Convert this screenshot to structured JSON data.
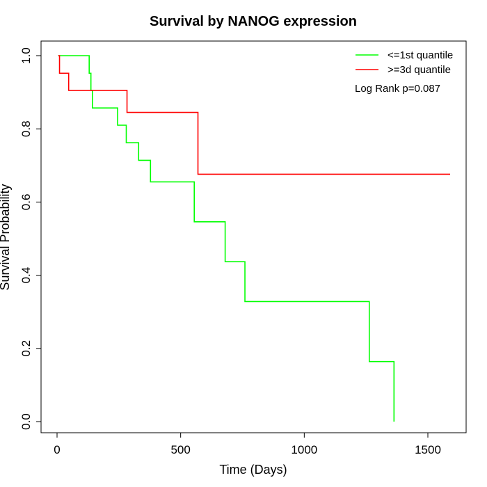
{
  "chart_data": {
    "type": "line",
    "title": "Survival by NANOG expression",
    "xlabel": "Time (Days)",
    "ylabel": "Survival Probability",
    "xlim": [
      0,
      1600
    ],
    "ylim": [
      0,
      1.0
    ],
    "xticks": [
      0,
      500,
      1000,
      1500
    ],
    "yticks": [
      0.0,
      0.2,
      0.4,
      0.6,
      0.8,
      1.0
    ],
    "xtick_labels": [
      "0",
      "500",
      "1000",
      "1500"
    ],
    "ytick_labels": [
      "0.0",
      "0.2",
      "0.4",
      "0.6",
      "0.8",
      "1.0"
    ],
    "legend_position": "top-right",
    "grid": false,
    "series": [
      {
        "name": "<=1st quantile",
        "color": "#00ff00",
        "steps": [
          [
            5,
            1.0
          ],
          [
            130,
            0.952
          ],
          [
            137,
            0.905
          ],
          [
            143,
            0.857
          ],
          [
            245,
            0.81
          ],
          [
            280,
            0.762
          ],
          [
            330,
            0.714
          ],
          [
            378,
            0.655
          ],
          [
            555,
            0.546
          ],
          [
            680,
            0.437
          ],
          [
            760,
            0.328
          ],
          [
            1263,
            0.164
          ],
          [
            1363,
            0.0
          ]
        ]
      },
      {
        "name": ">=3d quantile",
        "color": "#ff0000",
        "steps": [
          [
            5,
            1.0
          ],
          [
            10,
            0.952
          ],
          [
            47,
            0.905
          ],
          [
            283,
            0.845
          ],
          [
            570,
            0.676
          ],
          [
            1590,
            0.676
          ]
        ]
      }
    ],
    "annotation": "Log Rank p=0.087"
  }
}
